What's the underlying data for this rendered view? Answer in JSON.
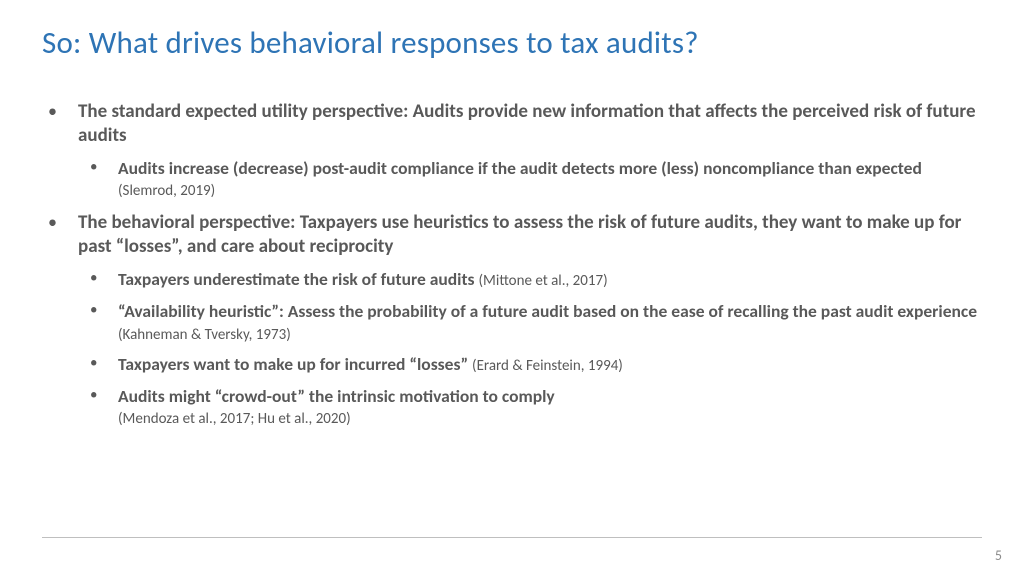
{
  "colors": {
    "title": "#2e74b5",
    "body": "#595959",
    "divider": "#bfbfbf",
    "pagenum": "#8c8c8c",
    "background": "#ffffff"
  },
  "typography": {
    "title_fontsize": 31,
    "l1_fontsize": 19,
    "l2_fontsize": 17.5,
    "cite_fontsize": 15,
    "font_family": "Calibri"
  },
  "title": "So: What drives behavioral responses to tax audits?",
  "bullets": [
    {
      "text": "The standard expected utility perspective: Audits provide new information that affects the perceived risk of future audits",
      "sub": [
        {
          "text": "Audits increase (decrease) post-audit compliance if the audit detects more (less) noncompliance than expected",
          "cite": "(Slemrod, 2019)"
        }
      ]
    },
    {
      "text": "The behavioral perspective: Taxpayers use heuristics to assess the risk of future audits, they want to make up for past “losses”, and care about reciprocity",
      "sub": [
        {
          "text": "Taxpayers underestimate the risk of future audits",
          "cite": "(Mittone et al., 2017)"
        },
        {
          "text": "“Availability heuristic”: Assess the probability of a future audit based on the ease of recalling the past audit experience",
          "cite": "(Kahneman & Tversky, 1973)"
        },
        {
          "text": "Taxpayers want to make up for incurred “losses”",
          "cite": "(Erard & Feinstein, 1994)"
        },
        {
          "text": "Audits might “crowd-out” the intrinsic motivation to comply",
          "cite_block": "(Mendoza et al., 2017; Hu et al., 2020)"
        }
      ]
    }
  ],
  "page_number": "5"
}
